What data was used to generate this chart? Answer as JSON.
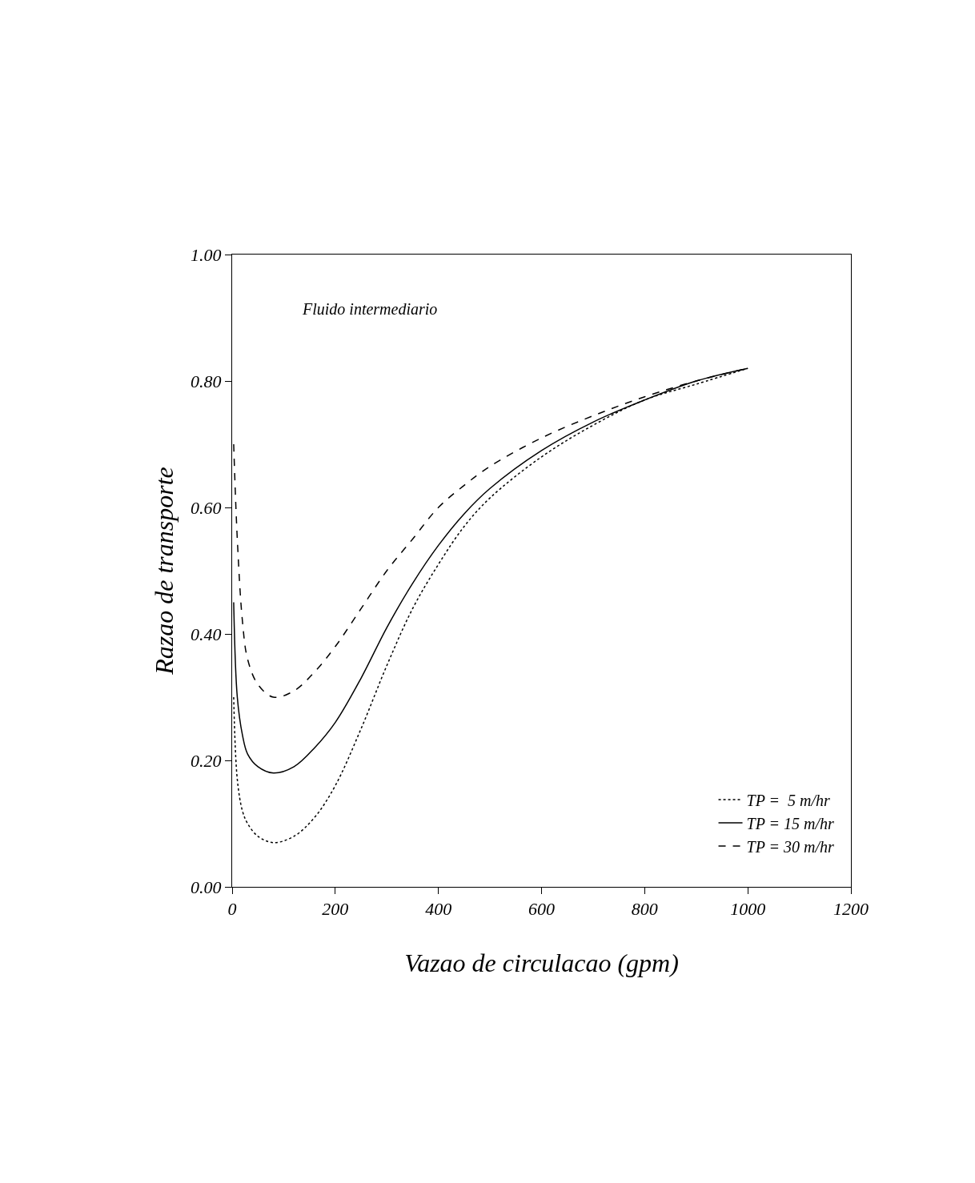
{
  "chart_data": {
    "type": "line",
    "xlabel": "Vazao de circulacao (gpm)",
    "ylabel": "Razao de transporte",
    "annotations": [
      "Fluido intermediario"
    ],
    "x": [
      3,
      10,
      20,
      30,
      50,
      80,
      120,
      160,
      200,
      250,
      300,
      350,
      400,
      450,
      500,
      600,
      700,
      800,
      900,
      1000
    ],
    "series": [
      {
        "name": "TP =  5 m/hr",
        "color": "#000000",
        "line_style": "dotted",
        "values": [
          0.3,
          0.17,
          0.12,
          0.1,
          0.08,
          0.07,
          0.08,
          0.11,
          0.16,
          0.25,
          0.35,
          0.44,
          0.51,
          0.57,
          0.615,
          0.68,
          0.73,
          0.77,
          0.795,
          0.82
        ]
      },
      {
        "name": "TP = 15 m/hr",
        "color": "#000000",
        "line_style": "solid",
        "values": [
          0.45,
          0.3,
          0.24,
          0.21,
          0.19,
          0.18,
          0.19,
          0.22,
          0.26,
          0.33,
          0.41,
          0.48,
          0.54,
          0.59,
          0.63,
          0.69,
          0.735,
          0.77,
          0.8,
          0.82
        ]
      },
      {
        "name": "TP = 30 m/hr",
        "color": "#000000",
        "line_style": "dashed",
        "values": [
          0.7,
          0.55,
          0.42,
          0.36,
          0.32,
          0.3,
          0.31,
          0.34,
          0.38,
          0.44,
          0.5,
          0.55,
          0.6,
          0.635,
          0.665,
          0.71,
          0.745,
          0.775,
          0.8,
          0.82
        ]
      }
    ],
    "xlim": [
      0,
      1200
    ],
    "xticks": [
      0,
      200,
      400,
      600,
      800,
      1000,
      1200
    ],
    "ylim": [
      0,
      1
    ],
    "yticks": [
      {
        "value": 0,
        "label": "0.00"
      },
      {
        "value": 0.2,
        "label": "0.20"
      },
      {
        "value": 0.4,
        "label": "0.40"
      },
      {
        "value": 0.6,
        "label": "0.60"
      },
      {
        "value": 0.8,
        "label": "0.80"
      },
      {
        "value": 1,
        "label": "1.00"
      }
    ],
    "grid": false,
    "legend": "bottom right",
    "marker": "none"
  }
}
